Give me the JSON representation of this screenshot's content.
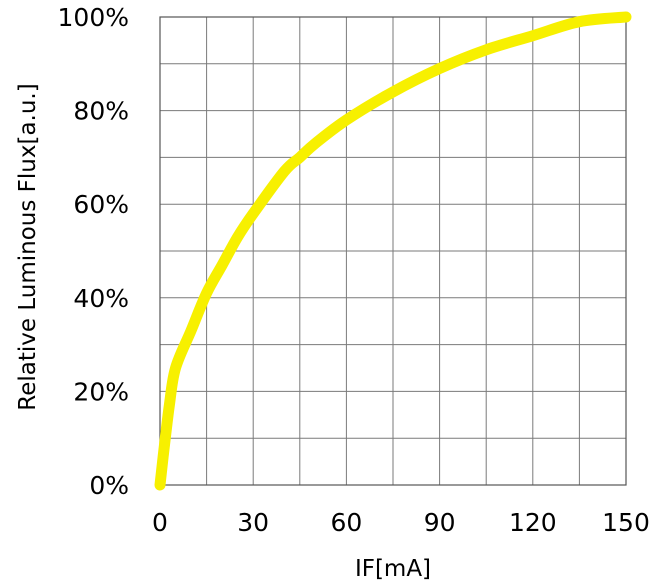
{
  "chart_data": {
    "type": "line",
    "title": "",
    "xlabel": "IF[mA]",
    "ylabel": "Relative Luminous Flux[a.u.]",
    "xlim": [
      0,
      150
    ],
    "ylim": [
      0,
      100
    ],
    "x_ticks": [
      "0",
      "30",
      "60",
      "90",
      "120",
      "150"
    ],
    "y_ticks": [
      "0%",
      "20%",
      "40%",
      "60%",
      "80%",
      "100%"
    ],
    "grid": true,
    "legend": "none",
    "series": [
      {
        "color": "#f7f000",
        "x": [
          0,
          1,
          3,
          5,
          10,
          15,
          20,
          25,
          30,
          40,
          45,
          50,
          60,
          75,
          90,
          105,
          120,
          135,
          150
        ],
        "y": [
          0,
          6,
          17,
          25,
          33,
          41,
          47,
          53,
          58,
          67,
          70,
          73,
          78,
          84,
          89,
          93,
          96,
          99,
          100
        ]
      }
    ]
  }
}
